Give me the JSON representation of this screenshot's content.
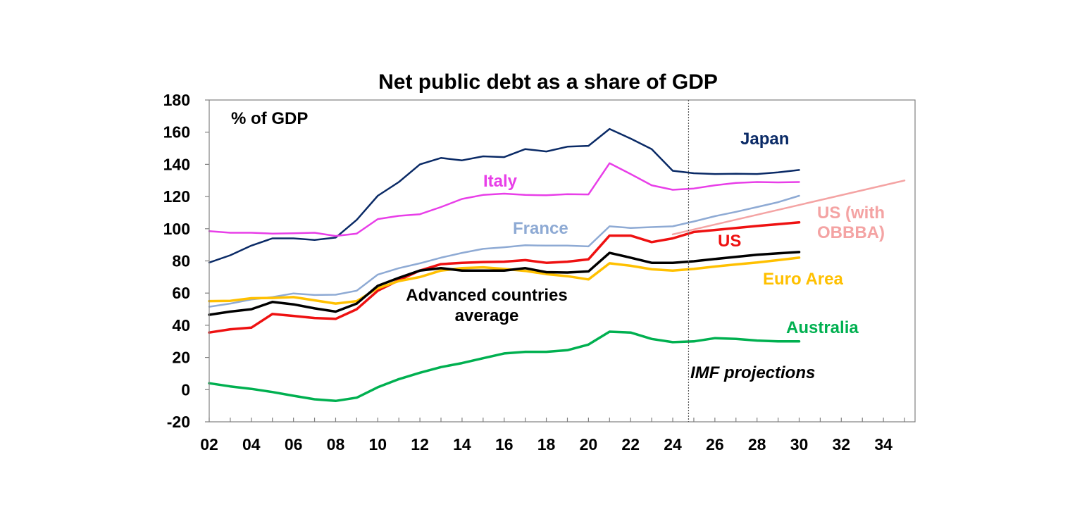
{
  "chart_data": {
    "type": "line",
    "title": "Net public debt as a share of GDP",
    "ylabel": "% of GDP",
    "xlabel": "",
    "ylim": [
      -20,
      180
    ],
    "yticks": [
      "-20",
      "0",
      "20",
      "40",
      "60",
      "80",
      "100",
      "120",
      "140",
      "160",
      "180"
    ],
    "xlim": [
      2002,
      2035.5
    ],
    "xticks": [
      "02",
      "04",
      "06",
      "08",
      "10",
      "12",
      "14",
      "16",
      "18",
      "20",
      "22",
      "24",
      "26",
      "28",
      "30",
      "32",
      "34"
    ],
    "projection_start": 2024.75,
    "projection_label": "IMF projections",
    "grid": false,
    "series": [
      {
        "name": "Japan",
        "color": "#0a2a66",
        "x": [
          2002,
          2003,
          2004,
          2005,
          2006,
          2007,
          2008,
          2009,
          2010,
          2011,
          2012,
          2013,
          2014,
          2015,
          2016,
          2017,
          2018,
          2019,
          2020,
          2021,
          2022,
          2023,
          2024,
          2025,
          2026,
          2027,
          2028,
          2029,
          2030
        ],
        "values": [
          79,
          83.5,
          89.5,
          94,
          94,
          93,
          94.5,
          105.5,
          120.5,
          129,
          140,
          144,
          142.5,
          145,
          144.5,
          149.5,
          148,
          151,
          151.5,
          162,
          156,
          149.5,
          136,
          134.5,
          134,
          134.2,
          134,
          135,
          136.5
        ]
      },
      {
        "name": "Italy",
        "color": "#e83ee8",
        "x": [
          2002,
          2003,
          2004,
          2005,
          2006,
          2007,
          2008,
          2009,
          2010,
          2011,
          2012,
          2013,
          2014,
          2015,
          2016,
          2017,
          2018,
          2019,
          2020,
          2021,
          2022,
          2023,
          2024,
          2025,
          2026,
          2027,
          2028,
          2029,
          2030
        ],
        "values": [
          98.5,
          97.5,
          97.5,
          97,
          97.2,
          97.5,
          95.5,
          97,
          106,
          108,
          109,
          113.5,
          118.5,
          121,
          121.8,
          121,
          120.8,
          121.5,
          121.3,
          140.7,
          134,
          127,
          124.2,
          125,
          127,
          128.5,
          129,
          128.8,
          129
        ]
      },
      {
        "name": "France",
        "color": "#8eaad4",
        "x": [
          2002,
          2003,
          2004,
          2005,
          2006,
          2007,
          2008,
          2009,
          2010,
          2011,
          2012,
          2013,
          2014,
          2015,
          2016,
          2017,
          2018,
          2019,
          2020,
          2021,
          2022,
          2023,
          2024,
          2025,
          2026,
          2027,
          2028,
          2029,
          2030
        ],
        "values": [
          51.5,
          53.5,
          56,
          57.5,
          59.8,
          58.8,
          59,
          61.5,
          71.5,
          75.5,
          78.5,
          82,
          85,
          87.5,
          88.5,
          89.7,
          89.5,
          89.5,
          89,
          101.5,
          100.5,
          101,
          101.5,
          104.5,
          107.8,
          110.5,
          113.5,
          116.5,
          120.5
        ]
      },
      {
        "name": "US (with OBBBA)",
        "color": "#f4a3a3",
        "x": [
          2024,
          2035
        ],
        "values": [
          96.5,
          130
        ]
      },
      {
        "name": "US",
        "color": "#ee1111",
        "x": [
          2002,
          2003,
          2004,
          2005,
          2006,
          2007,
          2008,
          2009,
          2010,
          2011,
          2012,
          2013,
          2014,
          2015,
          2016,
          2017,
          2018,
          2019,
          2020,
          2021,
          2022,
          2023,
          2024,
          2025,
          2026,
          2027,
          2028,
          2029,
          2030
        ],
        "values": [
          35.5,
          37.5,
          38.5,
          47,
          45.8,
          44.5,
          44,
          50,
          61.5,
          68,
          74,
          78,
          78.8,
          79.3,
          79.5,
          80.5,
          78.8,
          79.5,
          81,
          95.7,
          95.7,
          91.7,
          94,
          98,
          99.2,
          100.5,
          101.7,
          102.8,
          104
        ]
      },
      {
        "name": "Euro Area",
        "color": "#ffc000",
        "x": [
          2002,
          2003,
          2004,
          2005,
          2006,
          2007,
          2008,
          2009,
          2010,
          2011,
          2012,
          2013,
          2014,
          2015,
          2016,
          2017,
          2018,
          2019,
          2020,
          2021,
          2022,
          2023,
          2024,
          2025,
          2026,
          2027,
          2028,
          2029,
          2030
        ],
        "values": [
          55,
          55.2,
          56.8,
          57,
          57.5,
          55.5,
          53.5,
          55,
          63,
          67.5,
          70,
          74,
          75.5,
          76,
          75,
          73.8,
          71.8,
          70.5,
          68.5,
          78.5,
          77,
          74.8,
          74,
          75,
          76.5,
          77.8,
          79,
          80.5,
          82
        ]
      },
      {
        "name": "Advanced countries average",
        "color": "#000000",
        "x": [
          2002,
          2003,
          2004,
          2005,
          2006,
          2007,
          2008,
          2009,
          2010,
          2011,
          2012,
          2013,
          2014,
          2015,
          2016,
          2017,
          2018,
          2019,
          2020,
          2021,
          2022,
          2023,
          2024,
          2025,
          2026,
          2027,
          2028,
          2029,
          2030
        ],
        "values": [
          46.5,
          48.5,
          50,
          54.5,
          53,
          50.5,
          48.5,
          53.5,
          64.5,
          69.5,
          74,
          75.5,
          74,
          74,
          74,
          75.5,
          73,
          72.8,
          73.5,
          85,
          82,
          78.8,
          78.8,
          79.8,
          81.2,
          82.5,
          83.8,
          84.7,
          85.5
        ]
      },
      {
        "name": "Australia",
        "color": "#00b050",
        "x": [
          2002,
          2003,
          2004,
          2005,
          2006,
          2007,
          2008,
          2009,
          2010,
          2011,
          2012,
          2013,
          2014,
          2015,
          2016,
          2017,
          2018,
          2019,
          2020,
          2021,
          2022,
          2023,
          2024,
          2025,
          2026,
          2027,
          2028,
          2029,
          2030
        ],
        "values": [
          4,
          2,
          0.5,
          -1.5,
          -3.8,
          -6,
          -7,
          -5,
          1.5,
          6.5,
          10.5,
          14,
          16.5,
          19.5,
          22.5,
          23.5,
          23.5,
          24.5,
          28,
          36,
          35.5,
          31.5,
          29.5,
          30,
          32,
          31.5,
          30.5,
          30,
          30
        ]
      }
    ],
    "labels": {
      "japan": "Japan",
      "italy": "Italy",
      "france": "France",
      "us_obbba_line1": "US (with",
      "us_obbba_line2": "OBBBA)",
      "us": "US",
      "euro_area": "Euro Area",
      "adv_line1": "Advanced countries",
      "adv_line2": "average",
      "australia": "Australia"
    },
    "colors": {
      "frame": "#808080",
      "divider": "#555555"
    }
  }
}
